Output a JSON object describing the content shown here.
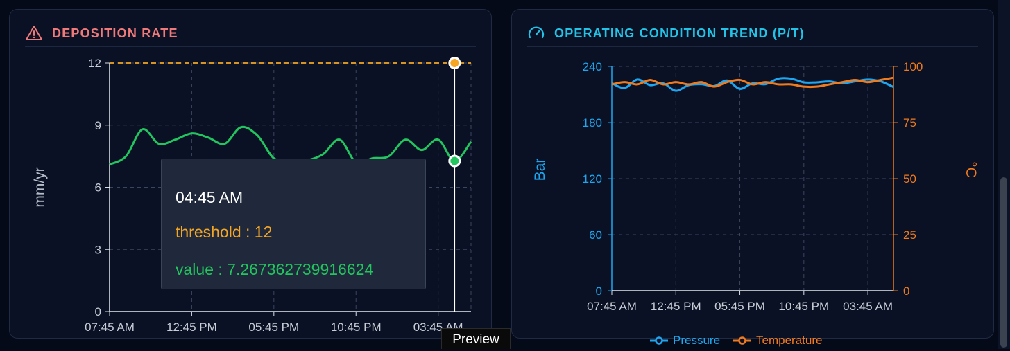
{
  "panels": {
    "deposition": {
      "title": "DEPOSITION RATE",
      "icon": "warning-triangle-icon",
      "y_axis_label": "mm/yr",
      "y_ticks": [
        "0",
        "3",
        "6",
        "9",
        "12"
      ],
      "x_ticks": [
        "07:45 AM",
        "12:45 PM",
        "05:45 PM",
        "10:45 PM",
        "03:45 AM"
      ],
      "tooltip": {
        "time": "04:45 AM",
        "threshold_label": "threshold",
        "threshold_value": "12",
        "value_label": "value",
        "value_value": "7.267362739916624"
      }
    },
    "operating": {
      "title": "OPERATING CONDITION TREND (P/T)",
      "icon": "gauge-icon",
      "left_axis_label": "Bar",
      "right_axis_label": "°C",
      "left_ticks": [
        "0",
        "60",
        "120",
        "180",
        "240"
      ],
      "right_ticks": [
        "0",
        "25",
        "50",
        "75",
        "100"
      ],
      "x_ticks": [
        "07:45 AM",
        "12:45 PM",
        "05:45 PM",
        "10:45 PM",
        "03:45 AM"
      ],
      "legend": [
        {
          "label": "Pressure",
          "color": "#1ea7f0"
        },
        {
          "label": "Temperature",
          "color": "#f07a1e"
        }
      ]
    }
  },
  "preview_tab": "Preview",
  "colors": {
    "deposition_line": "#22c55e",
    "threshold_line": "#f5a623",
    "pressure": "#1ea7f0",
    "temperature": "#f07a1e"
  },
  "chart_data": [
    {
      "type": "line",
      "title": "DEPOSITION RATE",
      "ylabel": "mm/yr",
      "ylim": [
        0,
        12
      ],
      "x": [
        "07:45 AM",
        "08:45 AM",
        "09:45 AM",
        "10:45 AM",
        "11:45 AM",
        "12:45 PM",
        "01:45 PM",
        "02:45 PM",
        "03:45 PM",
        "04:45 PM",
        "05:45 PM",
        "06:45 PM",
        "07:45 PM",
        "08:45 PM",
        "09:45 PM",
        "10:45 PM",
        "11:45 PM",
        "12:45 AM",
        "01:45 AM",
        "02:45 AM",
        "03:45 AM",
        "04:45 AM",
        "05:45 AM"
      ],
      "series": [
        {
          "name": "value",
          "values": [
            7.1,
            7.5,
            8.8,
            8.1,
            8.3,
            8.6,
            8.4,
            8.1,
            8.9,
            8.5,
            7.4,
            7.3,
            7.3,
            7.6,
            8.3,
            7.2,
            7.4,
            7.5,
            8.3,
            7.8,
            8.3,
            7.27,
            8.2
          ]
        },
        {
          "name": "threshold",
          "values": [
            12,
            12,
            12,
            12,
            12,
            12,
            12,
            12,
            12,
            12,
            12,
            12,
            12,
            12,
            12,
            12,
            12,
            12,
            12,
            12,
            12,
            12,
            12
          ]
        }
      ],
      "grid": true
    },
    {
      "type": "line",
      "title": "OPERATING CONDITION TREND (P/T)",
      "ylabel": "Bar",
      "y2label": "°C",
      "ylim": [
        0,
        240
      ],
      "y2lim": [
        0,
        100
      ],
      "x": [
        "07:45 AM",
        "08:45 AM",
        "09:45 AM",
        "10:45 AM",
        "11:45 AM",
        "12:45 PM",
        "01:45 PM",
        "02:45 PM",
        "03:45 PM",
        "04:45 PM",
        "05:45 PM",
        "06:45 PM",
        "07:45 PM",
        "08:45 PM",
        "09:45 PM",
        "10:45 PM",
        "11:45 PM",
        "12:45 AM",
        "01:45 AM",
        "02:45 AM",
        "03:45 AM",
        "04:45 AM",
        "05:45 AM"
      ],
      "series": [
        {
          "name": "Pressure",
          "axis": "left",
          "values": [
            222,
            217,
            226,
            220,
            222,
            214,
            220,
            221,
            219,
            225,
            216,
            222,
            221,
            227,
            227,
            223,
            223,
            224,
            222,
            224,
            226,
            224,
            218
          ]
        },
        {
          "name": "Temperature",
          "axis": "right",
          "values": [
            92,
            93,
            92,
            94,
            92,
            93,
            92,
            93,
            91,
            93,
            94,
            92,
            93,
            92,
            92,
            91,
            91,
            92,
            93,
            94,
            93,
            94,
            95
          ]
        }
      ],
      "grid": true,
      "legend": "bottom"
    }
  ]
}
